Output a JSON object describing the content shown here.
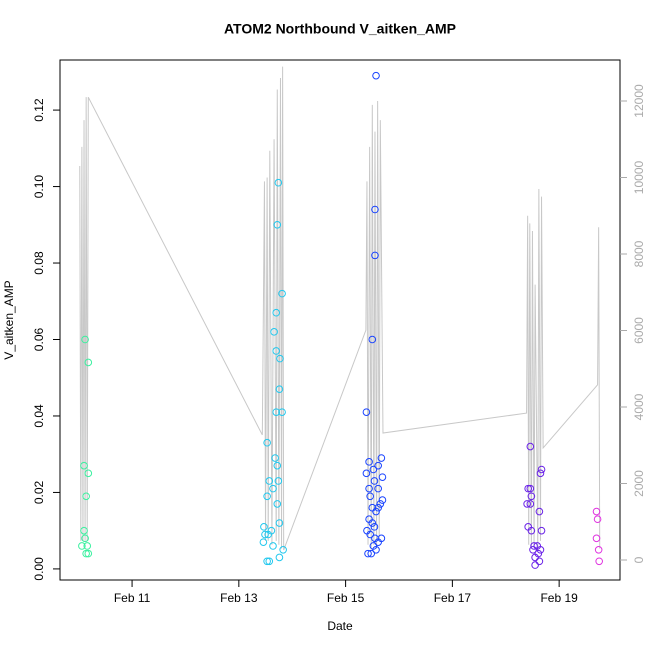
{
  "chart_data": {
    "type": "scatter",
    "title": "ATOM2 Northbound V_aitken_AMP",
    "x_label": "Date",
    "y_label": "V_aitken_AMP",
    "xlim": [
      9.65,
      20.14
    ],
    "xticks": [
      {
        "value": 11,
        "label": "Feb 11"
      },
      {
        "value": 13,
        "label": "Feb 13"
      },
      {
        "value": 15,
        "label": "Feb 15"
      },
      {
        "value": 17,
        "label": "Feb 17"
      },
      {
        "value": 19,
        "label": "Feb 19"
      }
    ],
    "ylim": [
      -0.0029,
      0.1331
    ],
    "yticks": [
      {
        "value": 0,
        "label": "0.00"
      },
      {
        "value": 0.02,
        "label": "0.02"
      },
      {
        "value": 0.04,
        "label": "0.04"
      },
      {
        "value": 0.06,
        "label": "0.06"
      },
      {
        "value": 0.08,
        "label": "0.08"
      },
      {
        "value": 0.1,
        "label": "0.10"
      },
      {
        "value": 0.12,
        "label": "0.12"
      }
    ],
    "y2lim": [
      -523,
      13072
    ],
    "y2ticks": [
      0,
      2000,
      4000,
      6000,
      8000,
      10000,
      12000
    ],
    "y2_color": "#aaaaaa",
    "series": [
      {
        "color": "#3cf0a0",
        "x": [
          10.12,
          10.18,
          10.1,
          10.18,
          10.14,
          10.1,
          10.12,
          10.06,
          10.16,
          10.14,
          10.18
        ],
        "values": [
          0.06,
          0.054,
          0.027,
          0.025,
          0.019,
          0.01,
          0.008,
          0.006,
          0.006,
          0.004,
          0.004
        ]
      },
      {
        "color": "#22c8ee",
        "x": [
          13.74,
          13.72,
          13.81,
          13.7,
          13.66,
          13.7,
          13.77,
          13.76,
          13.7,
          13.81,
          13.53,
          13.68,
          13.72,
          13.57,
          13.74,
          13.64,
          13.53,
          13.72,
          13.76,
          13.47,
          13.61,
          13.55,
          13.49,
          13.46,
          13.64,
          13.83,
          13.76,
          13.53,
          13.57
        ],
        "values": [
          0.101,
          0.09,
          0.072,
          0.067,
          0.062,
          0.057,
          0.055,
          0.047,
          0.041,
          0.041,
          0.033,
          0.029,
          0.027,
          0.023,
          0.023,
          0.021,
          0.019,
          0.017,
          0.012,
          0.011,
          0.01,
          0.009,
          0.009,
          0.007,
          0.006,
          0.005,
          0.003,
          0.002,
          0.002
        ]
      },
      {
        "color": "#1a44ff",
        "x": [
          15.57,
          15.55,
          15.55,
          15.5,
          15.39,
          15.67,
          15.44,
          15.61,
          15.52,
          15.39,
          15.69,
          15.54,
          15.44,
          15.61,
          15.46,
          15.69,
          15.65,
          15.5,
          15.61,
          15.57,
          15.44,
          15.5,
          15.54,
          15.4,
          15.46,
          15.55,
          15.67,
          15.61,
          15.52,
          15.57,
          15.42,
          15.48
        ],
        "values": [
          0.129,
          0.094,
          0.082,
          0.06,
          0.041,
          0.029,
          0.028,
          0.027,
          0.026,
          0.025,
          0.024,
          0.023,
          0.021,
          0.021,
          0.019,
          0.018,
          0.017,
          0.016,
          0.016,
          0.015,
          0.013,
          0.012,
          0.011,
          0.01,
          0.009,
          0.008,
          0.008,
          0.007,
          0.006,
          0.005,
          0.004,
          0.004
        ]
      },
      {
        "color": "#6a22e8",
        "x": [
          18.46,
          18.67,
          18.65,
          18.42,
          18.46,
          18.48,
          18.4,
          18.46,
          18.63,
          18.42,
          18.48,
          18.67,
          18.53,
          18.59,
          18.65,
          18.51,
          18.61,
          18.55,
          18.63,
          18.55
        ],
        "values": [
          0.032,
          0.026,
          0.025,
          0.021,
          0.021,
          0.019,
          0.017,
          0.017,
          0.015,
          0.011,
          0.01,
          0.01,
          0.006,
          0.006,
          0.005,
          0.005,
          0.004,
          0.003,
          0.002,
          0.001
        ]
      },
      {
        "color": "#e034e0",
        "x": [
          19.7,
          19.72,
          19.7,
          19.74,
          19.75
        ],
        "values": [
          0.015,
          0.013,
          0.008,
          0.005,
          0.002
        ]
      },
      {
        "color": "#c8c8c8",
        "axis": "y2",
        "x": [
          10.02,
          10.04,
          10.06,
          10.08,
          10.1,
          10.12,
          10.14,
          10.16,
          10.18,
          13.44,
          13.48,
          13.5,
          13.53,
          13.55,
          13.58,
          13.62,
          13.66,
          13.7,
          13.72,
          13.75,
          13.78,
          13.8,
          13.82,
          13.84,
          15.38,
          15.4,
          15.42,
          15.45,
          15.48,
          15.5,
          15.53,
          15.55,
          15.58,
          15.6,
          15.63,
          15.65,
          15.7,
          18.39,
          18.41,
          18.43,
          18.45,
          18.48,
          18.5,
          18.53,
          18.55,
          18.6,
          18.62,
          18.65,
          18.67,
          18.7,
          19.72,
          19.74,
          19.76
        ],
        "values": [
          10300,
          500,
          10800,
          500,
          11500,
          500,
          12100,
          500,
          12100,
          3270,
          9900,
          500,
          10000,
          500,
          10700,
          400,
          11000,
          500,
          12300,
          400,
          12600,
          300,
          12900,
          260,
          6010,
          9900,
          400,
          10800,
          300,
          11900,
          400,
          11200,
          300,
          12000,
          500,
          11500,
          3320,
          3840,
          9000,
          400,
          8800,
          300,
          8600,
          400,
          7200,
          300,
          9700,
          500,
          9500,
          2930,
          4580,
          8700,
          300
        ]
      }
    ]
  }
}
